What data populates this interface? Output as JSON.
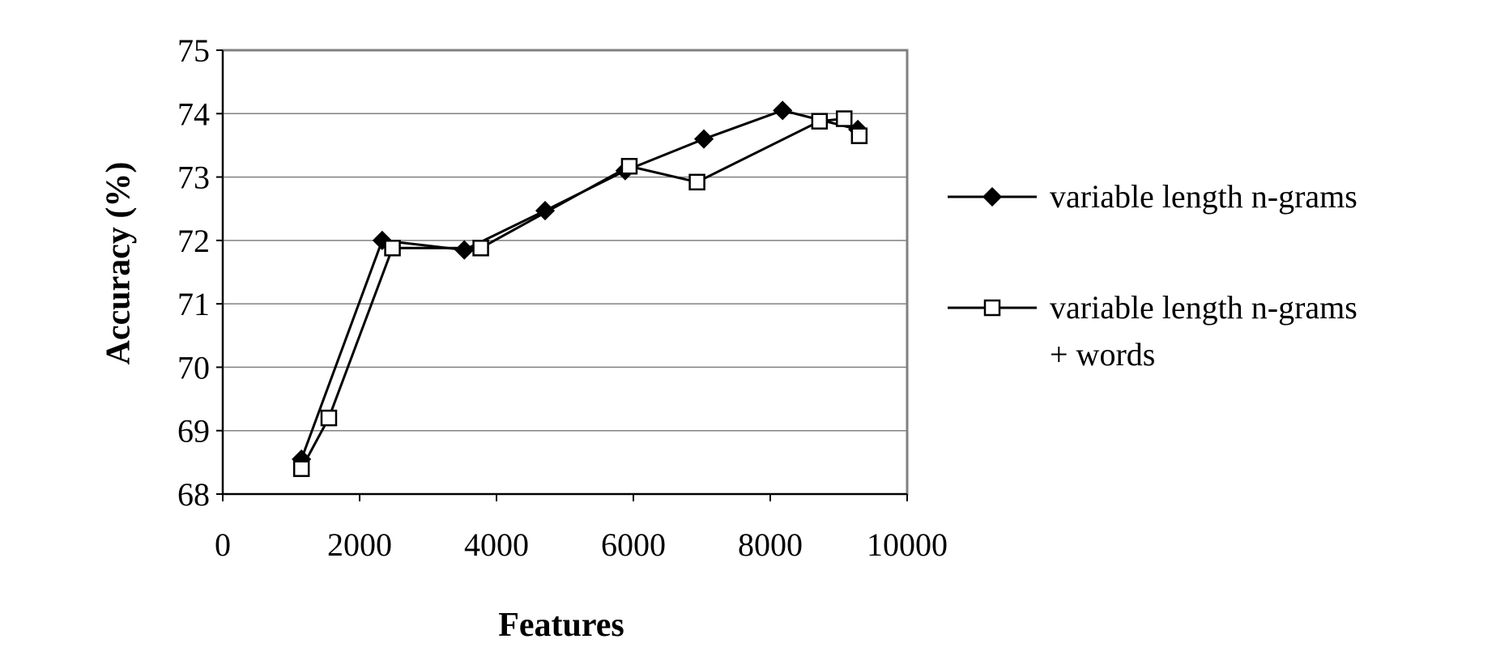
{
  "chart_data": {
    "type": "line",
    "title": "",
    "xlabel": "Features",
    "ylabel": "Accuracy (%)",
    "xlim": [
      0,
      10000
    ],
    "ylim": [
      68,
      75
    ],
    "xticks": [
      "0",
      "2000",
      "4000",
      "6000",
      "8000",
      "10000"
    ],
    "yticks": [
      "68",
      "69",
      "70",
      "71",
      "72",
      "73",
      "74",
      "75"
    ],
    "grid": "horizontal",
    "legend_position": "right",
    "series": [
      {
        "name": "variable length n-grams",
        "marker": "filled-diamond",
        "color": "#000000",
        "x": [
          1150,
          2330,
          3530,
          4710,
          5880,
          7030,
          8180,
          9280
        ],
        "y": [
          68.55,
          72.0,
          71.85,
          72.47,
          73.1,
          73.6,
          74.05,
          73.75
        ]
      },
      {
        "name": "variable length n-grams + words",
        "legend_lines": [
          "variable length n-grams",
          "+ words"
        ],
        "marker": "open-square",
        "color": "#000000",
        "x": [
          1150,
          1550,
          2480,
          3770,
          5940,
          6930,
          8720,
          9080,
          9300
        ],
        "y": [
          68.4,
          69.2,
          71.88,
          71.88,
          73.17,
          72.92,
          73.88,
          73.92,
          73.65
        ]
      }
    ]
  }
}
